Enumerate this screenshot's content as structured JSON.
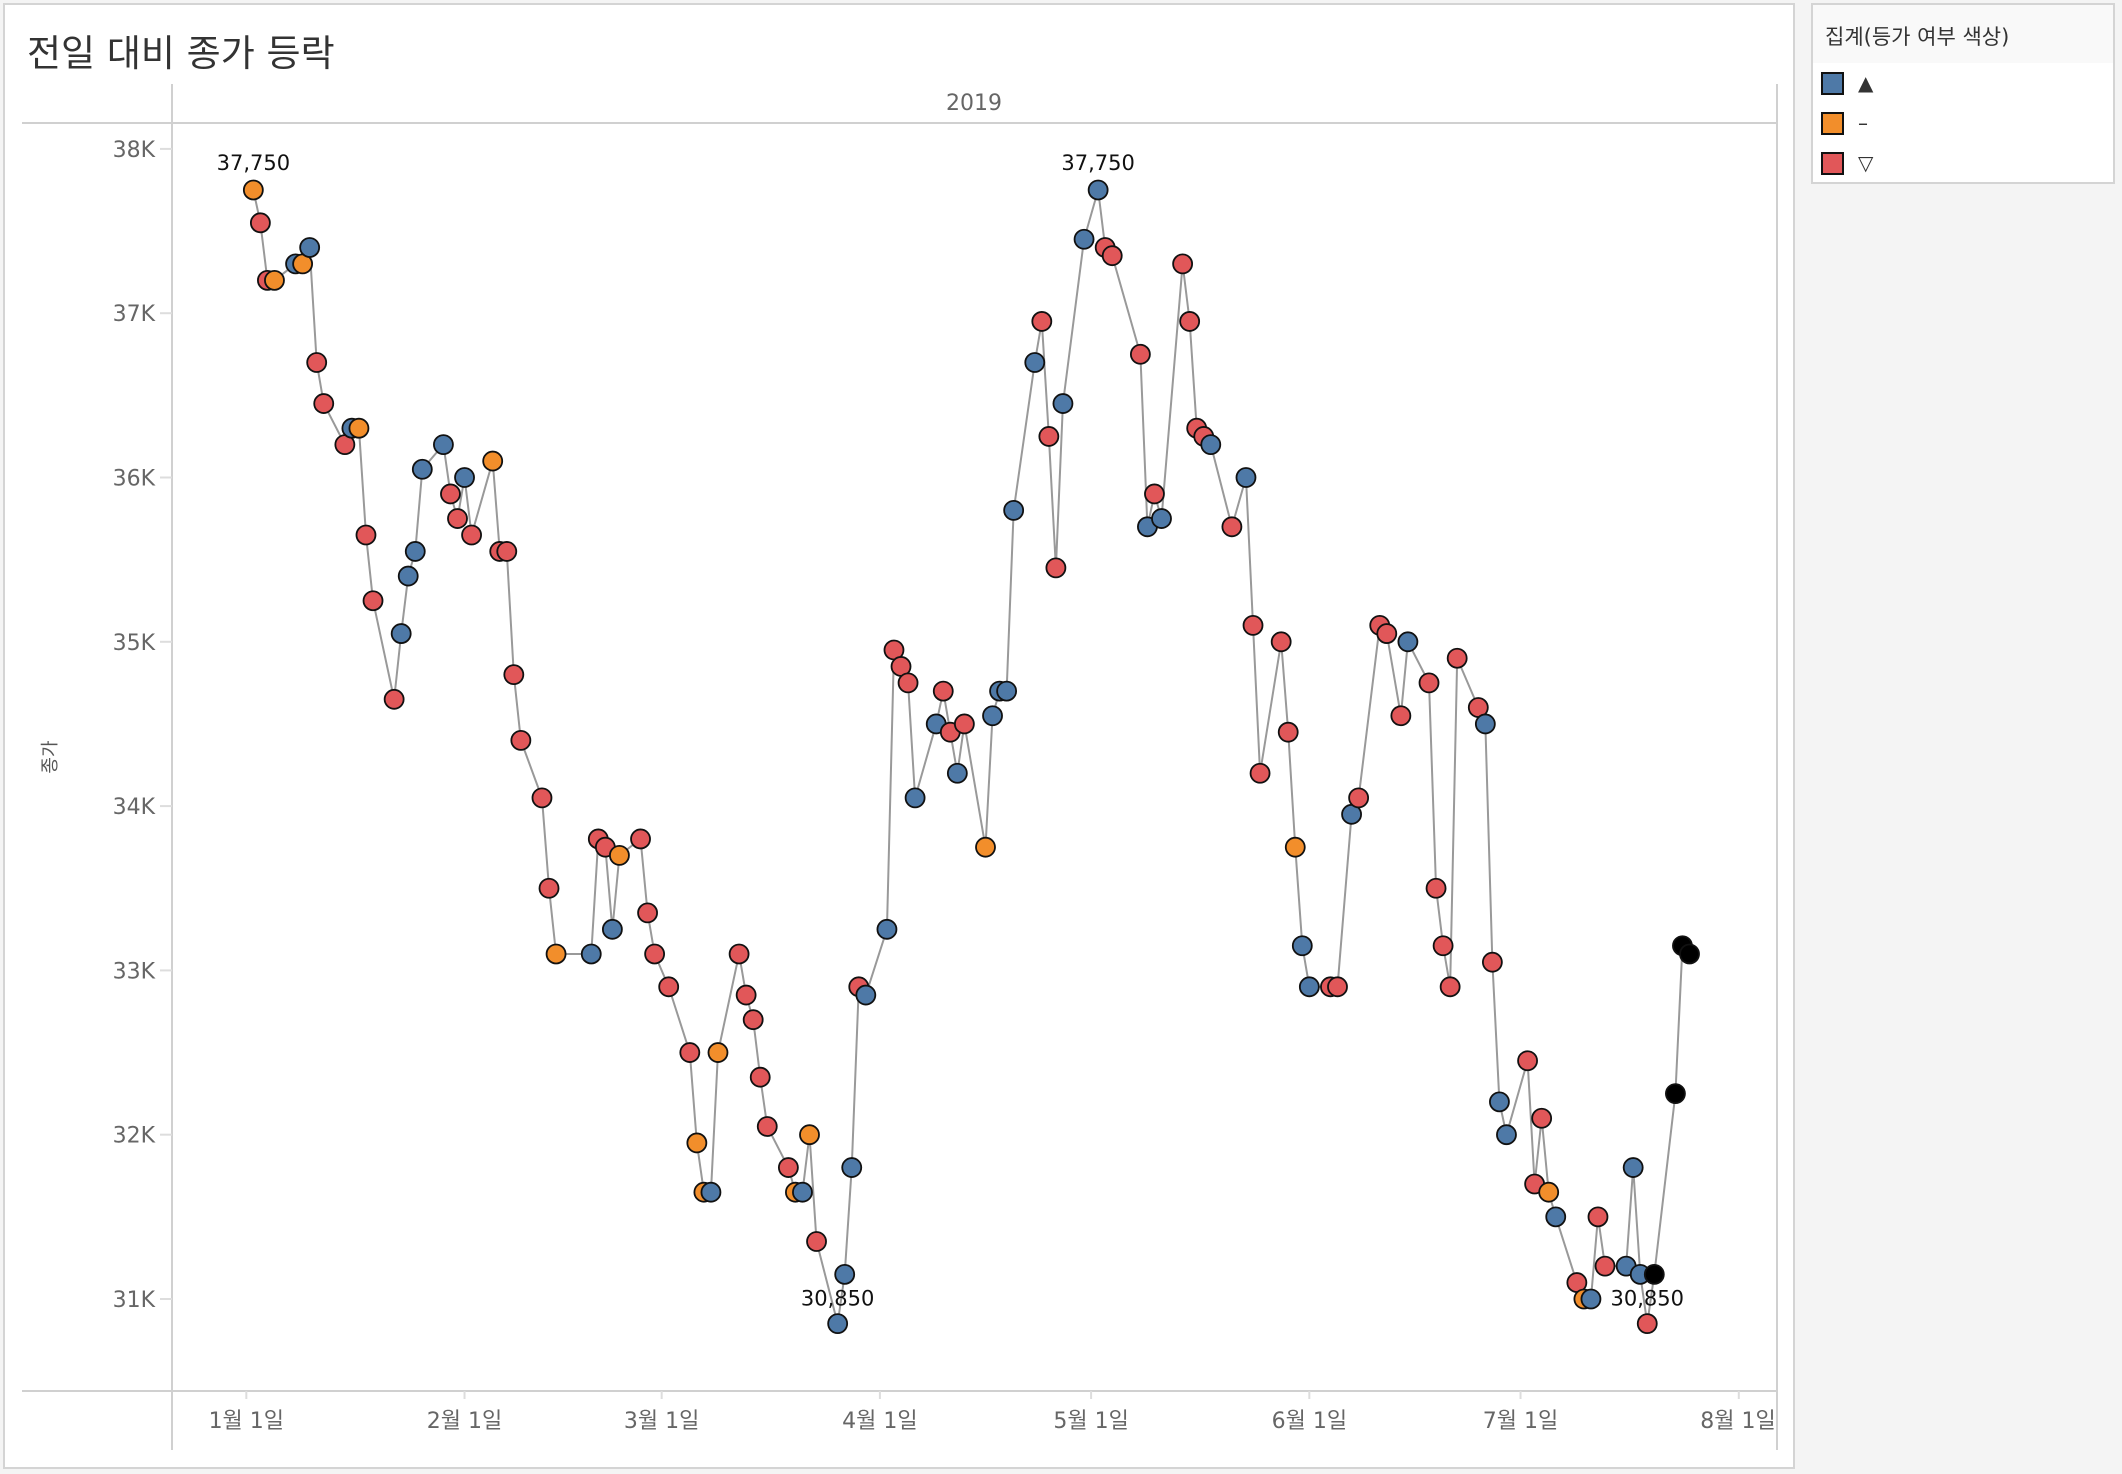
{
  "title": "전일 대비 종가 등락",
  "legend": {
    "title": "집계(등가 여부 색상)",
    "items": [
      {
        "label": "▲",
        "status": "u",
        "color": "#4e79a7"
      },
      {
        "label": "–",
        "status": "f",
        "color": "#f28e2b"
      },
      {
        "label": "▽",
        "status": "d",
        "color": "#e15759"
      }
    ]
  },
  "chart_data": {
    "type": "line",
    "title": "전일 대비 종가 등락",
    "column_header": "2019",
    "ylabel": "종가",
    "xlabel": "",
    "x_unit": "days since 2019-01-01",
    "ylim": [
      30500,
      38150
    ],
    "yticks": [
      {
        "value": 31000,
        "label": "31K"
      },
      {
        "value": 32000,
        "label": "32K"
      },
      {
        "value": 33000,
        "label": "33K"
      },
      {
        "value": 34000,
        "label": "34K"
      },
      {
        "value": 35000,
        "label": "35K"
      },
      {
        "value": 36000,
        "label": "36K"
      },
      {
        "value": 37000,
        "label": "37K"
      },
      {
        "value": 38000,
        "label": "38K"
      }
    ],
    "xticks": [
      {
        "day": 0,
        "label": "1월 1일"
      },
      {
        "day": 31,
        "label": "2월 1일"
      },
      {
        "day": 59,
        "label": "3월 1일"
      },
      {
        "day": 90,
        "label": "4월 1일"
      },
      {
        "day": 120,
        "label": "5월 1일"
      },
      {
        "day": 151,
        "label": "6월 1일"
      },
      {
        "day": 181,
        "label": "7월 1일"
      },
      {
        "day": 212,
        "label": "8월 1일"
      }
    ],
    "days": [
      1,
      2,
      3,
      4,
      7,
      8,
      9,
      10,
      11,
      14,
      15,
      16,
      17,
      18,
      21,
      22,
      23,
      24,
      25,
      28,
      29,
      30,
      31,
      32,
      35,
      36,
      37,
      38,
      39,
      42,
      43,
      44,
      49,
      50,
      51,
      52,
      53,
      56,
      57,
      58,
      60,
      63,
      64,
      65,
      66,
      67,
      70,
      71,
      72,
      73,
      74,
      77,
      78,
      79,
      80,
      81,
      84,
      85,
      86,
      87,
      88,
      91,
      92,
      93,
      94,
      95,
      98,
      99,
      100,
      101,
      102,
      105,
      106,
      107,
      108,
      109,
      112,
      113,
      114,
      115,
      116,
      119,
      121,
      122,
      123,
      127,
      128,
      129,
      130,
      133,
      134,
      135,
      136,
      137,
      140,
      142,
      143,
      144,
      147,
      148,
      149,
      150,
      151,
      154,
      155,
      157,
      158,
      161,
      162,
      164,
      165,
      168,
      169,
      170,
      171,
      172,
      175,
      176,
      177,
      178,
      179,
      182,
      183,
      184,
      185,
      186,
      189,
      190,
      191,
      192,
      193,
      196,
      197,
      198,
      199,
      200,
      203,
      204,
      205
    ],
    "values": [
      37750,
      37550,
      37200,
      37200,
      37300,
      37300,
      37400,
      36700,
      36450,
      36200,
      36300,
      36300,
      35650,
      35250,
      34650,
      35050,
      35400,
      35550,
      36050,
      36200,
      35900,
      35750,
      36000,
      35650,
      36100,
      35550,
      35550,
      34800,
      34400,
      34050,
      33500,
      33100,
      33100,
      33800,
      33750,
      33250,
      33700,
      33800,
      33350,
      33100,
      32900,
      32500,
      31950,
      31650,
      31650,
      32500,
      33100,
      32850,
      32700,
      32350,
      32050,
      31800,
      31650,
      31650,
      32000,
      31350,
      30850,
      31150,
      31800,
      32900,
      32850,
      33250,
      34950,
      34850,
      34750,
      34050,
      34500,
      34700,
      34450,
      34200,
      34500,
      33750,
      34550,
      34700,
      34700,
      35800,
      36700,
      36950,
      36250,
      35450,
      36450,
      37450,
      37750,
      37400,
      37350,
      36750,
      35700,
      35900,
      35750,
      37300,
      36950,
      36300,
      36250,
      36200,
      35700,
      36000,
      35100,
      34200,
      35000,
      34450,
      33750,
      33150,
      32900,
      32900,
      32900,
      33950,
      34050,
      35100,
      35050,
      34550,
      35000,
      34750,
      33500,
      33150,
      32900,
      34900,
      34600,
      34500,
      33050,
      32200,
      32000,
      32450,
      31700,
      32100,
      31650,
      31500,
      31100,
      31000,
      31000,
      31500,
      31200,
      31200,
      31800,
      31150,
      30850,
      31150,
      32250,
      33150,
      33100
    ],
    "status": "fddfufudddufddduuuuuddudfddddddfuddufdddddffufddddddfufduuuduuddduuddudfuuuuuddduuudddududdddududdddfuudduddddudddddduduudddfudfudduuud",
    "annotations": [
      {
        "day": 1,
        "value": 37750,
        "label": "37,750"
      },
      {
        "day": 121,
        "value": 37750,
        "label": "37,750"
      },
      {
        "day": 84,
        "value": 30850,
        "label": "30,850"
      },
      {
        "day": 199,
        "value": 30850,
        "label": "30,850"
      }
    ],
    "grid": false
  }
}
